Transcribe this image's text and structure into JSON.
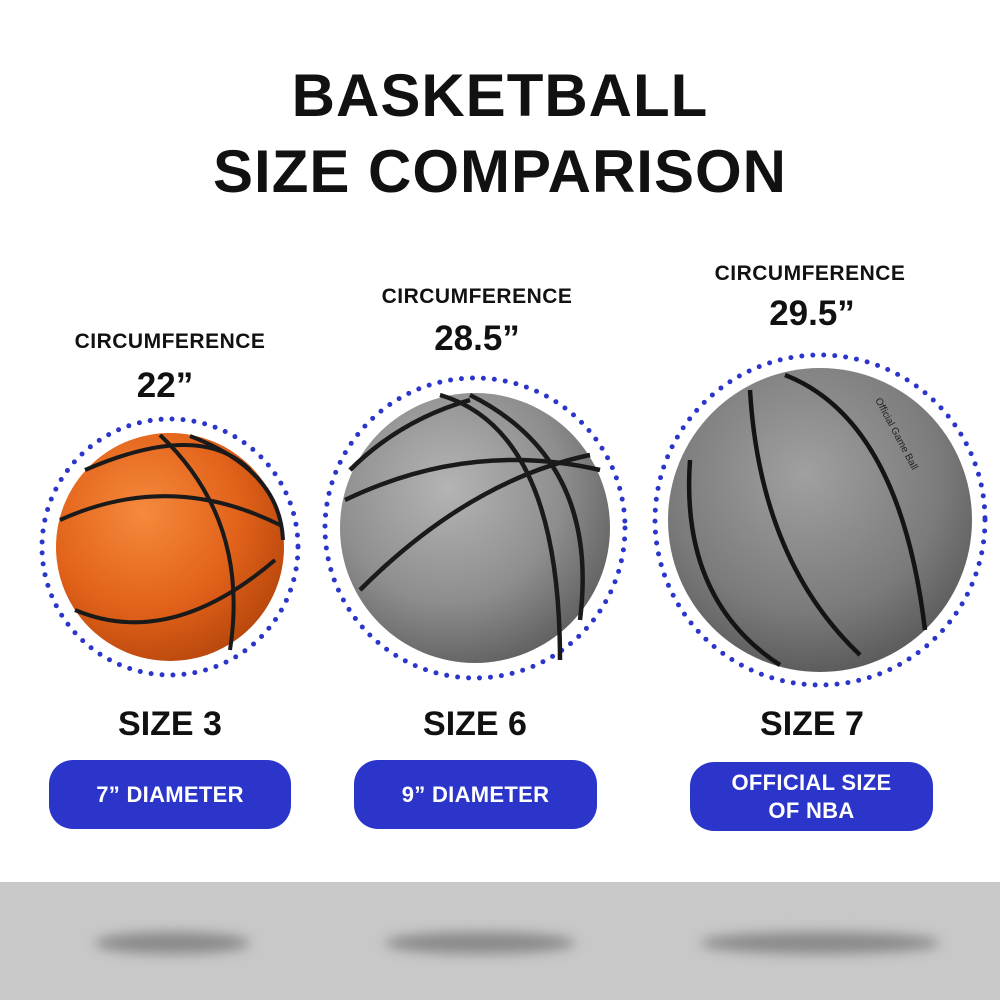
{
  "title": {
    "line1": "BASKETBALL",
    "line2": "SIZE COMPARISON"
  },
  "colors": {
    "accent": "#2b35c9",
    "floor": "#c8c8c8",
    "orange_ball": "#e8661c",
    "gray_ball": "#8c8c8c"
  },
  "balls": [
    {
      "circumference_label": "CIRCUMFERENCE",
      "circumference": "22”",
      "size": "SIZE 3",
      "badge": "7” DIAMETER"
    },
    {
      "circumference_label": "CIRCUMFERENCE",
      "circumference": "28.5”",
      "size": "SIZE 6",
      "badge": "9” DIAMETER"
    },
    {
      "circumference_label": "CIRCUMFERENCE",
      "circumference": "29.5”",
      "size": "SIZE 7",
      "badge_line1": "OFFICIAL SIZE",
      "badge_line2": "OF NBA",
      "ball_print": "Official Game Ball"
    }
  ]
}
